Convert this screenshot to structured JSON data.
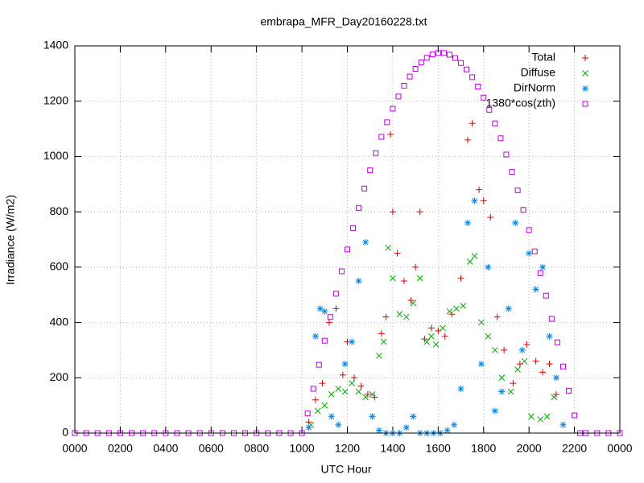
{
  "chart_data": {
    "type": "scatter",
    "title": "embrapa_MFR_Day20160228.txt",
    "x_label": "UTC Hour",
    "y_label": "Irradiance (W/m2)",
    "xlim": [
      0,
      24
    ],
    "xticks": [
      {
        "value": 0,
        "label": "0000"
      },
      {
        "value": 2,
        "label": "0200"
      },
      {
        "value": 4,
        "label": "0400"
      },
      {
        "value": 6,
        "label": "0600"
      },
      {
        "value": 8,
        "label": "0800"
      },
      {
        "value": 10,
        "label": "1000"
      },
      {
        "value": 12,
        "label": "1200"
      },
      {
        "value": 14,
        "label": "1400"
      },
      {
        "value": 16,
        "label": "1600"
      },
      {
        "value": 18,
        "label": "1800"
      },
      {
        "value": 20,
        "label": "2000"
      },
      {
        "value": 22,
        "label": "2200"
      },
      {
        "value": 24,
        "label": "0000"
      }
    ],
    "ylim": [
      0,
      1400
    ],
    "yticks": [
      0,
      200,
      400,
      600,
      800,
      1000,
      1200,
      1400
    ],
    "grid": true,
    "legend": "top-right",
    "series": [
      {
        "name": "Total",
        "color": "#dd0000",
        "marker": "plus",
        "x": [
          10.3,
          10.6,
          10.9,
          11.2,
          11.5,
          11.8,
          12.0,
          12.3,
          12.6,
          12.9,
          13.2,
          13.5,
          13.7,
          13.9,
          14.0,
          14.2,
          14.5,
          14.8,
          15.0,
          15.2,
          15.4,
          15.7,
          16.0,
          16.3,
          16.6,
          17.0,
          17.3,
          17.5,
          17.8,
          18.0,
          18.3,
          18.6,
          18.9,
          19.3,
          19.6,
          19.9,
          20.3,
          20.6,
          20.9,
          21.2
        ],
        "values": [
          40,
          120,
          180,
          400,
          450,
          210,
          330,
          200,
          170,
          140,
          130,
          360,
          420,
          1080,
          800,
          650,
          550,
          480,
          600,
          800,
          340,
          380,
          370,
          350,
          430,
          560,
          1060,
          1120,
          880,
          840,
          780,
          420,
          300,
          180,
          250,
          320,
          260,
          220,
          250,
          140
        ]
      },
      {
        "name": "Diffuse",
        "color": "#00aa00",
        "marker": "cross",
        "x": [
          10.4,
          10.7,
          11.0,
          11.3,
          11.6,
          11.9,
          12.2,
          12.5,
          12.8,
          13.1,
          13.4,
          13.6,
          13.8,
          14.0,
          14.3,
          14.6,
          14.9,
          15.2,
          15.5,
          15.7,
          15.9,
          16.2,
          16.5,
          16.8,
          17.1,
          17.4,
          17.6,
          17.9,
          18.2,
          18.5,
          18.8,
          19.2,
          19.5,
          19.8,
          20.1,
          20.5,
          20.8,
          21.1
        ],
        "values": [
          30,
          80,
          100,
          140,
          160,
          150,
          180,
          150,
          130,
          140,
          280,
          330,
          670,
          560,
          430,
          420,
          470,
          560,
          330,
          350,
          320,
          380,
          440,
          450,
          460,
          620,
          640,
          400,
          350,
          300,
          200,
          150,
          230,
          260,
          60,
          50,
          60,
          130
        ]
      },
      {
        "name": "DirNorm",
        "color": "#0088ee",
        "marker": "star",
        "x": [
          10.3,
          10.6,
          10.8,
          11.0,
          11.3,
          11.6,
          11.9,
          12.2,
          12.5,
          12.8,
          13.1,
          13.4,
          13.7,
          14.0,
          14.3,
          14.6,
          14.9,
          15.2,
          15.5,
          15.8,
          16.1,
          16.4,
          16.7,
          17.0,
          17.3,
          17.6,
          17.9,
          18.2,
          18.5,
          18.8,
          19.1,
          19.4,
          19.7,
          20.0,
          20.3,
          20.6,
          20.9,
          21.2,
          21.5
        ],
        "values": [
          20,
          350,
          450,
          440,
          60,
          30,
          250,
          330,
          550,
          690,
          60,
          10,
          0,
          0,
          0,
          20,
          60,
          0,
          0,
          0,
          0,
          10,
          30,
          160,
          760,
          840,
          250,
          600,
          80,
          150,
          450,
          760,
          300,
          650,
          520,
          600,
          350,
          200,
          30
        ]
      },
      {
        "name": "1380*cos(zth)",
        "color": "#bb00dd",
        "marker": "square",
        "x": [
          0,
          0.5,
          1,
          1.5,
          2,
          2.5,
          3,
          3.5,
          4,
          4.5,
          5,
          5.5,
          6,
          6.5,
          7,
          7.5,
          8,
          8.5,
          9,
          9.5,
          10,
          10.25,
          10.5,
          10.75,
          11,
          11.25,
          11.5,
          11.75,
          12,
          12.25,
          12.5,
          12.75,
          13,
          13.25,
          13.5,
          13.75,
          14,
          14.25,
          14.5,
          14.75,
          15,
          15.25,
          15.5,
          15.75,
          16,
          16.25,
          16.5,
          16.75,
          17,
          17.25,
          17.5,
          17.75,
          18,
          18.25,
          18.5,
          18.75,
          19,
          19.25,
          19.5,
          19.75,
          20,
          20.25,
          20.5,
          20.75,
          21,
          21.25,
          21.5,
          21.75,
          22,
          22.25,
          22.5,
          23,
          23.5,
          24
        ],
        "values": [
          0,
          0,
          0,
          0,
          0,
          0,
          0,
          0,
          0,
          0,
          0,
          0,
          0,
          0,
          0,
          0,
          0,
          0,
          0,
          0,
          0,
          71,
          160,
          247,
          334,
          420,
          504,
          585,
          664,
          741,
          814,
          884,
          950,
          1012,
          1071,
          1124,
          1173,
          1217,
          1256,
          1289,
          1317,
          1340,
          1357,
          1369,
          1374,
          1374,
          1368,
          1356,
          1338,
          1315,
          1287,
          1253,
          1213,
          1169,
          1120,
          1066,
          1007,
          944,
          878,
          807,
          734,
          657,
          578,
          497,
          413,
          328,
          241,
          153,
          64,
          0,
          0,
          0,
          0,
          0
        ]
      }
    ]
  }
}
